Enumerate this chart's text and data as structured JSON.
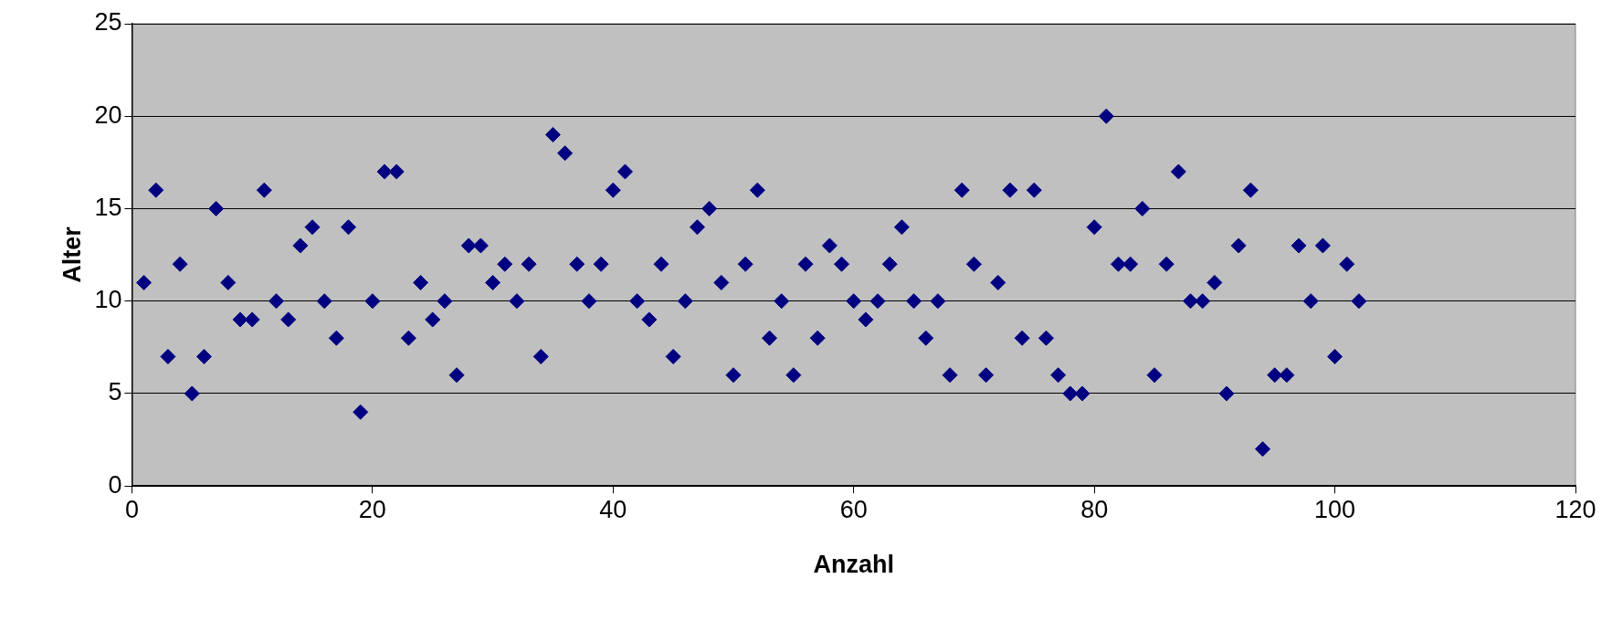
{
  "chart_data": {
    "type": "scatter",
    "xlabel": "Anzahl",
    "ylabel": "Alter",
    "x": [
      1,
      2,
      3,
      4,
      5,
      6,
      7,
      8,
      9,
      10,
      11,
      12,
      13,
      14,
      15,
      16,
      17,
      18,
      19,
      20,
      21,
      22,
      23,
      24,
      25,
      26,
      27,
      28,
      29,
      30,
      31,
      32,
      33,
      34,
      35,
      36,
      37,
      38,
      39,
      40,
      41,
      42,
      43,
      44,
      45,
      46,
      47,
      48,
      49,
      50,
      51,
      52,
      53,
      54,
      55,
      56,
      57,
      58,
      59,
      60,
      61,
      62,
      63,
      64,
      65,
      66,
      67,
      68,
      69,
      70,
      71,
      72,
      73,
      74,
      75,
      76,
      77,
      78,
      79,
      80,
      81,
      82,
      83,
      84,
      85,
      86,
      87,
      88,
      89,
      90,
      91,
      92,
      93,
      94,
      95,
      96,
      97,
      98,
      99,
      100,
      101,
      102
    ],
    "series": [
      {
        "color": "#000080",
        "values": [
          11,
          16,
          7,
          12,
          5,
          7,
          15,
          11,
          9,
          9,
          16,
          10,
          9,
          13,
          14,
          10,
          8,
          14,
          4,
          10,
          17,
          17,
          8,
          11,
          9,
          10,
          6,
          13,
          13,
          11,
          12,
          10,
          12,
          7,
          19,
          18,
          12,
          10,
          12,
          16,
          17,
          10,
          9,
          12,
          7,
          10,
          14,
          15,
          11,
          6,
          12,
          16,
          8,
          10,
          6,
          12,
          8,
          13,
          12,
          10,
          9,
          10,
          12,
          14,
          10,
          8,
          10,
          6,
          16,
          12,
          6,
          11,
          16,
          8,
          16,
          8,
          6,
          5,
          5,
          14,
          20,
          12,
          12,
          15,
          6,
          12,
          17,
          10,
          10,
          11,
          5,
          13,
          16,
          2,
          6,
          6,
          13,
          10,
          13,
          7,
          12,
          10
        ]
      }
    ],
    "xlim": [
      0,
      120
    ],
    "xticks": [
      0,
      20,
      40,
      60,
      80,
      100,
      120
    ],
    "ylim": [
      0,
      25
    ],
    "yticks": [
      0,
      5,
      10,
      15,
      20,
      25
    ],
    "grid": "y",
    "marker": "diamond",
    "legend": false
  }
}
